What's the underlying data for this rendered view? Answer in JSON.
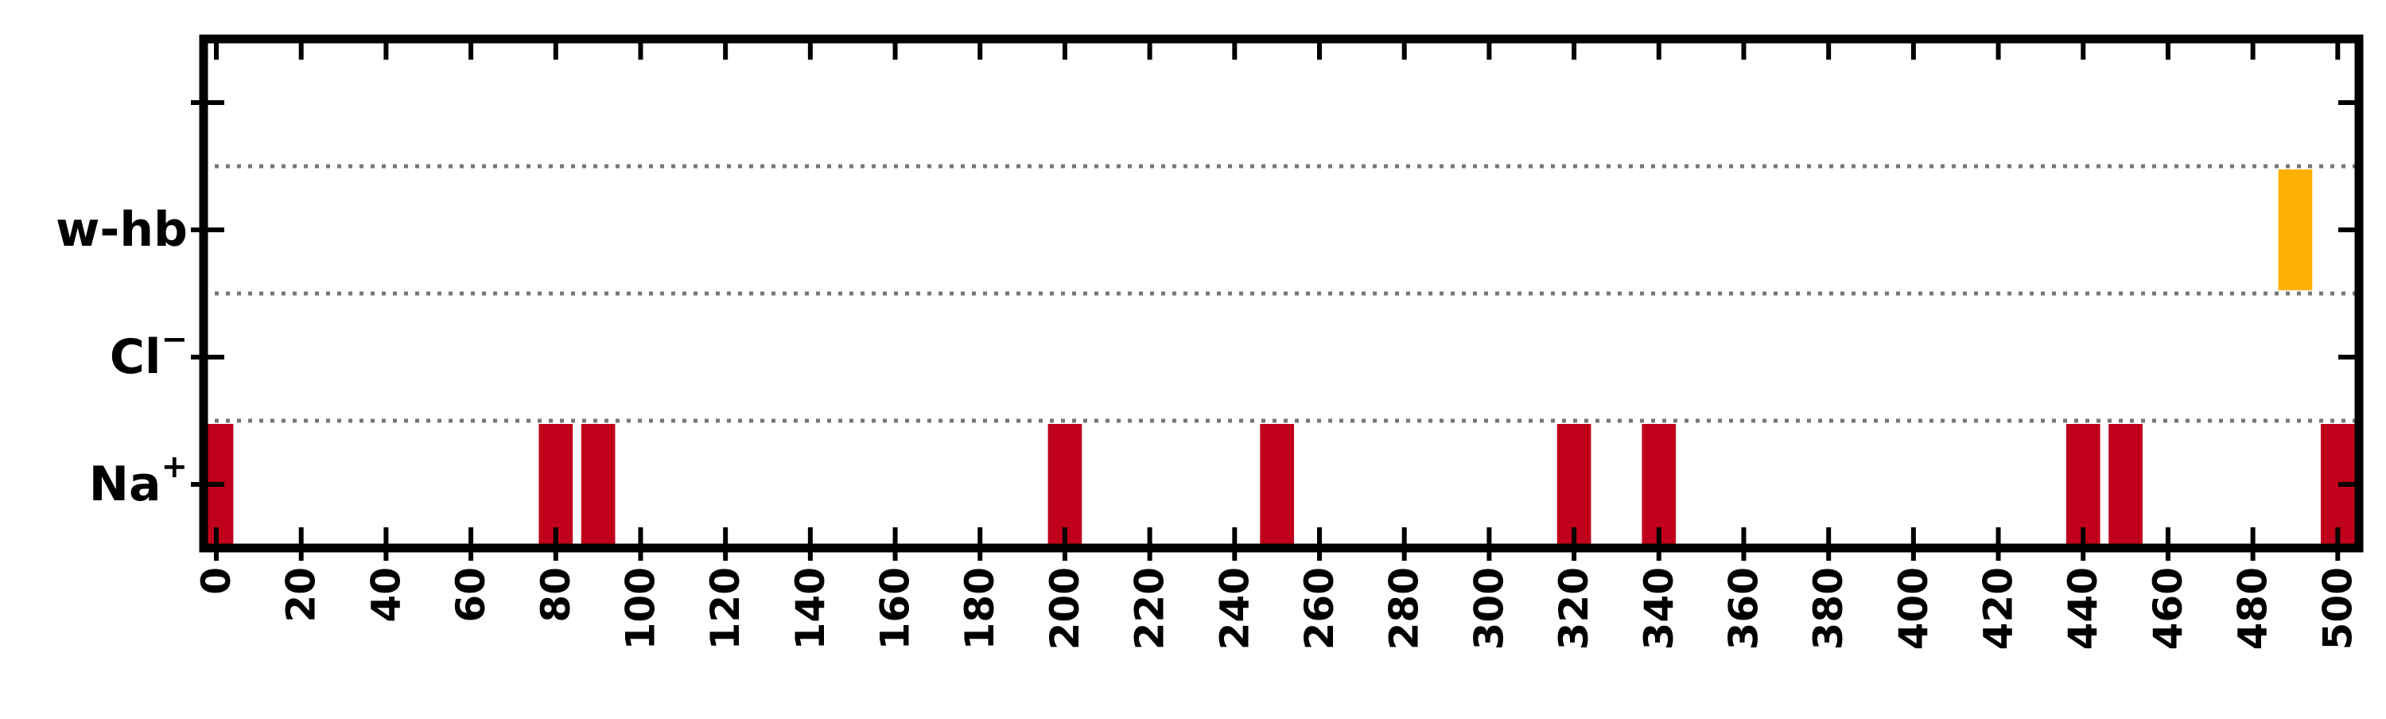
{
  "chart_data": {
    "type": "event-raster",
    "title": "",
    "xlabel": "",
    "ylabel": "",
    "xlim": [
      -3,
      505
    ],
    "xticks": [
      0,
      20,
      40,
      60,
      80,
      100,
      120,
      140,
      160,
      180,
      200,
      220,
      240,
      260,
      280,
      300,
      320,
      340,
      360,
      380,
      400,
      420,
      440,
      460,
      480,
      500
    ],
    "xtick_labels": [
      "0",
      "20",
      "40",
      "60",
      "80",
      "100",
      "120",
      "140",
      "160",
      "180",
      "200",
      "220",
      "240",
      "260",
      "280",
      "300",
      "320",
      "340",
      "360",
      "380",
      "400",
      "420",
      "440",
      "460",
      "480",
      "500"
    ],
    "rows": [
      {
        "label_main": "Na",
        "label_sup": "+",
        "color": "#c0001a",
        "events": [
          0,
          80,
          90,
          200,
          250,
          320,
          340,
          440,
          450,
          500
        ]
      },
      {
        "label_main": "Cl",
        "label_sup": "−",
        "color": "#c0001a",
        "events": []
      },
      {
        "label_main": "w-hb",
        "label_sup": "",
        "color": "#ffb000",
        "events": [
          490
        ]
      }
    ],
    "event_width": 8,
    "row_separator_style": "dotted",
    "grid": false,
    "legend": "none"
  }
}
